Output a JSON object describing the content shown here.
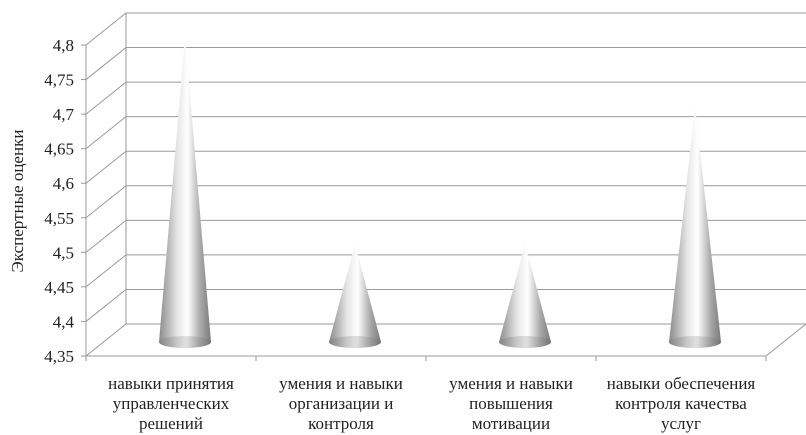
{
  "chart_data": {
    "type": "bar",
    "bar_shape": "cone",
    "ylabel": "Экспертные оценки",
    "xlabel": "",
    "ylim": [
      4.35,
      4.8
    ],
    "yticks": [
      "4,35",
      "4,4",
      "4,45",
      "4,5",
      "4,55",
      "4,6",
      "4,65",
      "4,7",
      "4,75",
      "4,8"
    ],
    "categories": [
      [
        "навыки принятия",
        "управленческих",
        "решений"
      ],
      [
        "умения и навыки",
        "организации и",
        "контроля"
      ],
      [
        "умения и навыки",
        "повышения",
        "мотивации"
      ],
      [
        "навыки обеспечения",
        "контроля качества",
        "услуг"
      ]
    ],
    "values": [
      4.8,
      4.5,
      4.5,
      4.7
    ],
    "grid": true,
    "legend": "none"
  }
}
